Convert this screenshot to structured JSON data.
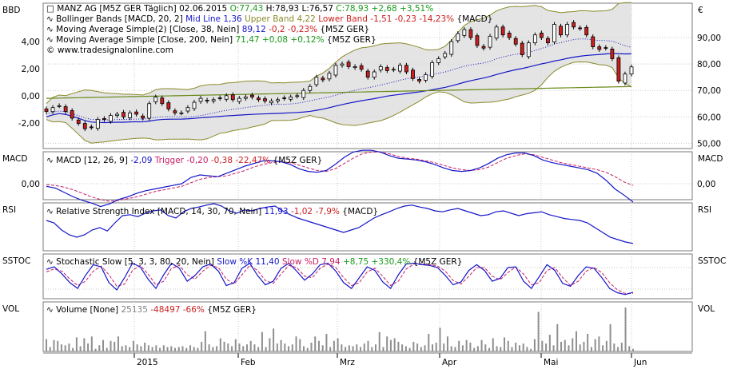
{
  "colors": {
    "up": "#ffffff",
    "down": "#cc1f1f",
    "macd": "#1515c8",
    "signal": "#c81e64",
    "band": "#8a8a2a",
    "ma38": "#1515c8",
    "ma200": "#6a8a1a",
    "volume": "#8f8f8f",
    "panel_border": "#7a7a7a",
    "gridline": "#c8c8c8",
    "positive": "#1a9a1a",
    "negative": "#cc1f1f"
  },
  "panels": {
    "price": {
      "left_label": "BBD",
      "right_label": "€",
      "header": {
        "name": "MANZ AG [M5Z GER  Täglich] 02.06.2015",
        "open": "O:77,43",
        "high": "H:78,93",
        "low": "L:76,57",
        "close": "C:78,93 +2,68 +3,51%"
      },
      "lines": [
        {
          "icon": "∿",
          "prefix": "Bollinger Bands [MACD, 20, 2]",
          "mid": "Mid Line 1,36",
          "upper": "Upper Band 4,22",
          "lower": "Lower Band -1,51 -0,23 -14,23%",
          "suffix": "{MACD}"
        },
        {
          "icon": "∿",
          "prefix": "Moving Average Simple(2) [Close, 38, Nein]",
          "value": "89,12",
          "change": "-0,2 -0,23%",
          "suffix": "{M5Z GER}"
        },
        {
          "icon": "∿",
          "prefix": "Moving Average Simple [Close, 200, Nein]",
          "value": "71,47",
          "change": "+0,08 +0,12%",
          "suffix": "{M5Z GER}"
        }
      ],
      "copyright": "© www.tradesignalonline.com"
    },
    "macd": {
      "left_label": "MACD",
      "right_label": "MACD",
      "icon": "∿",
      "prefix": "MACD [12, 26, 9]",
      "value": "-2,09",
      "trigger_label": "Trigger",
      "trigger": "-0,20",
      "change": "-0,38 -22,47%",
      "suffix": "{M5Z GER}"
    },
    "rsi": {
      "left_label": "RSI",
      "right_label": "RSI",
      "icon": "∿",
      "prefix": "Relative Strength Index [MACD, 14, 30, 70, Nein]",
      "value": "11,93",
      "change": "-1,02 -7,9%",
      "suffix": "{MACD}"
    },
    "stoch": {
      "left_label": "SSTOC",
      "right_label": "SSTOC",
      "icon": "∿",
      "prefix": "Stochastic Slow [5, 3, 3, 80, 20, Nein]",
      "k_label": "Slow %K",
      "k": "11,40",
      "d_label": "Slow %D",
      "d": "7,94",
      "change": "+8,75 +330,4%",
      "suffix": "{M5Z GER}"
    },
    "vol": {
      "left_label": "VOL",
      "right_label": "VOL",
      "icon": "∿",
      "prefix": "Volume [None]",
      "value": "25135",
      "change": "-48497 -66%",
      "suffix": "{M5Z GER}"
    }
  },
  "chart_data": [
    {
      "type": "candlestick",
      "title": "MANZ AG [M5Z GER  Täglich] 02.06.2015",
      "x_ticks": [
        "2015",
        "Feb",
        "Mrz",
        "Apr",
        "Mai",
        "Jun"
      ],
      "left_axis": {
        "ticks": [
          "4,00",
          "2,00",
          "0,00",
          "-2,00"
        ],
        "values": [
          4,
          2,
          0,
          -2
        ]
      },
      "right_axis": {
        "ticks": [
          "90,00",
          "80,00",
          "70,00",
          "60,00",
          "50,00"
        ],
        "values": [
          90,
          80,
          70,
          60,
          50
        ],
        "ylim": [
          48,
          103
        ]
      },
      "close": [
        62.0,
        63.5,
        64.2,
        62.0,
        59.5,
        57.5,
        55.5,
        56.0,
        59.0,
        59.0,
        60.5,
        61.0,
        60.0,
        61.5,
        61.0,
        59.5,
        65.0,
        67.5,
        65.0,
        63.0,
        61.5,
        61.5,
        63.5,
        65.5,
        67.0,
        66.0,
        66.5,
        67.0,
        68.0,
        66.5,
        67.0,
        67.5,
        67.5,
        66.5,
        66.0,
        66.0,
        66.5,
        67.0,
        67.5,
        68.0,
        70.0,
        71.5,
        75.0,
        74.0,
        76.5,
        79.5,
        80.0,
        79.0,
        79.0,
        78.0,
        75.0,
        77.0,
        79.0,
        77.5,
        78.0,
        79.5,
        77.0,
        74.5,
        73.5,
        76.0,
        80.5,
        82.0,
        84.0,
        88.5,
        91.5,
        93.0,
        90.0,
        87.0,
        86.0,
        90.5,
        94.0,
        91.0,
        90.0,
        87.5,
        83.5,
        88.0,
        91.0,
        90.0,
        88.0,
        95.0,
        91.0,
        95.0,
        94.0,
        93.5,
        91.0,
        86.5,
        85.5,
        86.0,
        82.0,
        73.5,
        76.2,
        78.9
      ],
      "series": [
        {
          "name": "Bollinger Bands [MACD, 20, 2]",
          "mid": 1.36,
          "upper": 4.22,
          "lower": -1.51
        },
        {
          "name": "Moving Average Simple(2) [Close, 38, Nein]",
          "last": 89.12
        },
        {
          "name": "Moving Average Simple [Close, 200, Nein]",
          "last": 71.47
        }
      ]
    },
    {
      "type": "line",
      "title": "MACD [12, 26, 9]",
      "yticks": [
        "0,00"
      ],
      "series": [
        {
          "name": "MACD",
          "values": [
            -0.3,
            -0.5,
            -1.0,
            -1.5,
            -1.9,
            -2.2,
            -2.6,
            -2.3,
            -1.8,
            -1.5,
            -1.1,
            -0.8,
            -0.6,
            -0.4,
            -0.2,
            0.0,
            0.7,
            1.0,
            0.9,
            0.8,
            1.2,
            1.6,
            2.0,
            2.3,
            2.6,
            2.6,
            2.5,
            2.2,
            1.7,
            1.4,
            1.3,
            1.5,
            2.2,
            3.0,
            3.6,
            3.8,
            3.8,
            3.6,
            3.2,
            2.9,
            2.8,
            2.7,
            2.5,
            2.2,
            1.8,
            1.5,
            1.4,
            1.5,
            1.8,
            2.3,
            2.9,
            3.3,
            3.5,
            3.5,
            3.2,
            2.7,
            2.4,
            2.2,
            2.0,
            1.8,
            1.6,
            1.2,
            0.4,
            -0.6,
            -1.3,
            -2.09
          ]
        },
        {
          "name": "Trigger",
          "values": [
            -0.1,
            -0.2,
            -0.4,
            -0.7,
            -1.1,
            -1.5,
            -1.8,
            -2.0,
            -1.9,
            -1.7,
            -1.5,
            -1.2,
            -0.9,
            -0.7,
            -0.5,
            -0.3,
            0.1,
            0.5,
            0.7,
            0.8,
            0.9,
            1.2,
            1.5,
            1.9,
            2.2,
            2.4,
            2.5,
            2.4,
            2.1,
            1.8,
            1.5,
            1.4,
            1.7,
            2.3,
            2.9,
            3.4,
            3.6,
            3.6,
            3.4,
            3.1,
            2.9,
            2.8,
            2.6,
            2.4,
            2.1,
            1.8,
            1.6,
            1.5,
            1.6,
            1.9,
            2.4,
            2.9,
            3.2,
            3.4,
            3.3,
            3.0,
            2.7,
            2.4,
            2.2,
            2.0,
            1.8,
            1.6,
            1.3,
            0.8,
            0.2,
            -0.2
          ]
        }
      ]
    },
    {
      "type": "line",
      "title": "Relative Strength Index [MACD, 14, 30, 70, Nein]",
      "ylim": [
        0,
        100
      ],
      "series": [
        {
          "name": "RSI",
          "values": [
            60,
            55,
            40,
            30,
            25,
            30,
            40,
            45,
            38,
            55,
            70,
            72,
            68,
            75,
            80,
            82,
            70,
            65,
            78,
            85,
            88,
            92,
            95,
            90,
            80,
            75,
            82,
            80,
            85,
            88,
            90,
            80,
            72,
            65,
            60,
            55,
            50,
            45,
            40,
            35,
            40,
            45,
            55,
            65,
            72,
            78,
            85,
            90,
            92,
            88,
            85,
            80,
            78,
            82,
            85,
            80,
            75,
            70,
            72,
            78,
            80,
            75,
            70,
            74,
            76,
            78,
            72,
            68,
            64,
            62,
            60,
            55,
            45,
            35,
            25,
            20,
            15,
            12
          ]
        }
      ]
    },
    {
      "type": "line",
      "title": "Stochastic Slow [5, 3, 3, 80, 20, Nein]",
      "ylim": [
        0,
        100
      ],
      "series": [
        {
          "name": "Slow %K",
          "values": [
            75,
            82,
            62,
            38,
            22,
            58,
            88,
            82,
            38,
            18,
            52,
            92,
            82,
            48,
            22,
            60,
            92,
            78,
            42,
            58,
            82,
            90,
            70,
            30,
            38,
            78,
            92,
            58,
            32,
            42,
            78,
            92,
            70,
            45,
            62,
            88,
            92,
            70,
            38,
            22,
            52,
            82,
            72,
            40,
            22,
            60,
            90,
            92,
            88,
            86,
            80,
            58,
            32,
            40,
            72,
            88,
            72,
            42,
            50,
            80,
            82,
            42,
            22,
            55,
            88,
            72,
            36,
            28,
            58,
            82,
            78,
            52,
            22,
            10,
            5,
            11.4
          ]
        },
        {
          "name": "Slow %D",
          "values": [
            68,
            76,
            70,
            48,
            30,
            42,
            70,
            84,
            60,
            28,
            34,
            72,
            86,
            62,
            32,
            42,
            78,
            86,
            60,
            48,
            70,
            86,
            80,
            48,
            34,
            60,
            86,
            72,
            44,
            36,
            62,
            86,
            80,
            56,
            52,
            78,
            90,
            80,
            52,
            30,
            38,
            68,
            78,
            56,
            30,
            42,
            76,
            90,
            90,
            88,
            84,
            70,
            44,
            34,
            56,
            80,
            80,
            56,
            46,
            66,
            82,
            62,
            32,
            38,
            72,
            80,
            52,
            30,
            42,
            70,
            80,
            66,
            38,
            18,
            8,
            7.94
          ]
        }
      ]
    },
    {
      "type": "bar",
      "title": "Volume [None]",
      "ylim": [
        0,
        100
      ],
      "values": [
        28,
        10,
        26,
        24,
        16,
        14,
        18,
        8,
        32,
        12,
        30,
        18,
        34,
        6,
        14,
        26,
        8,
        24,
        22,
        34,
        12,
        14,
        10,
        24,
        16,
        12,
        20,
        14,
        10,
        14,
        8,
        14,
        10,
        12,
        8,
        10,
        12,
        8,
        14,
        10,
        8,
        22,
        46,
        16,
        10,
        12,
        30,
        22,
        18,
        12,
        28,
        18,
        12,
        16,
        24,
        16,
        10,
        44,
        10,
        30,
        52,
        18,
        26,
        18,
        12,
        16,
        34,
        28,
        12,
        8,
        20,
        34,
        24,
        14,
        40,
        10,
        24,
        30,
        16,
        10,
        14,
        12,
        16,
        10,
        18,
        24,
        10,
        16,
        44,
        10,
        34,
        26,
        30,
        22,
        16,
        12,
        8,
        22,
        18,
        10,
        14,
        40,
        16,
        20,
        54,
        18,
        34,
        12,
        10,
        24,
        14,
        26,
        20,
        8,
        12,
        26,
        16,
        8,
        30,
        12,
        10,
        32,
        24,
        10,
        20,
        14,
        18,
        10,
        6,
        28,
        90,
        24,
        18,
        38,
        14,
        62,
        22,
        26,
        14,
        30,
        46,
        16,
        22,
        40,
        10,
        28,
        34,
        14,
        24,
        62,
        18,
        10,
        20,
        100,
        12,
        6
      ]
    }
  ]
}
